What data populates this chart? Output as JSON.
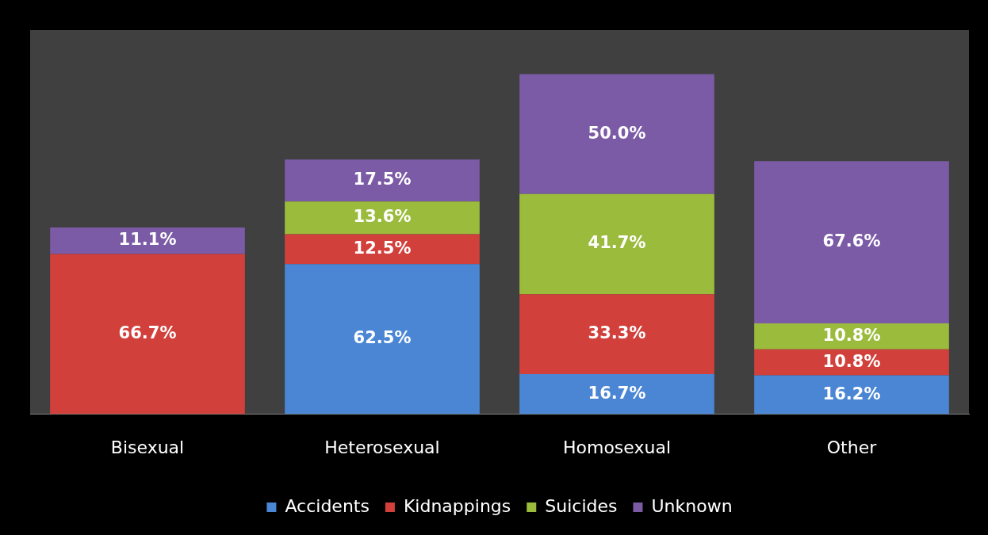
{
  "chart_data": {
    "type": "bar",
    "stacked": true,
    "categories": [
      "Bisexual",
      "Heterosexual",
      "Homosexual",
      "Other"
    ],
    "legend": "bottom",
    "grid": false,
    "tick_labels": "x",
    "marker": "square",
    "series": [
      {
        "name": "Accidents",
        "color": "#4a86d4",
        "values": [
          null,
          62.5,
          16.7,
          16.2
        ],
        "value_labels": [
          null,
          "62.5%",
          "16.7%",
          "16.2%"
        ]
      },
      {
        "name": "Kidnappings",
        "color": "#d2403c",
        "values": [
          66.7,
          12.5,
          33.3,
          10.8
        ],
        "value_labels": [
          "66.7%",
          "12.5%",
          "33.3%",
          "10.8%"
        ]
      },
      {
        "name": "Suicides",
        "color": "#9bbb3c",
        "values": [
          null,
          13.6,
          41.7,
          10.8
        ],
        "value_labels": [
          null,
          "13.6%",
          "41.7%",
          "10.8%"
        ]
      },
      {
        "name": "Unknown",
        "color": "#7b5aa6",
        "values": [
          11.1,
          17.5,
          50.0,
          67.6
        ],
        "value_labels": [
          "11.1%",
          "17.5%",
          "50.0%",
          "67.6%"
        ]
      }
    ]
  }
}
